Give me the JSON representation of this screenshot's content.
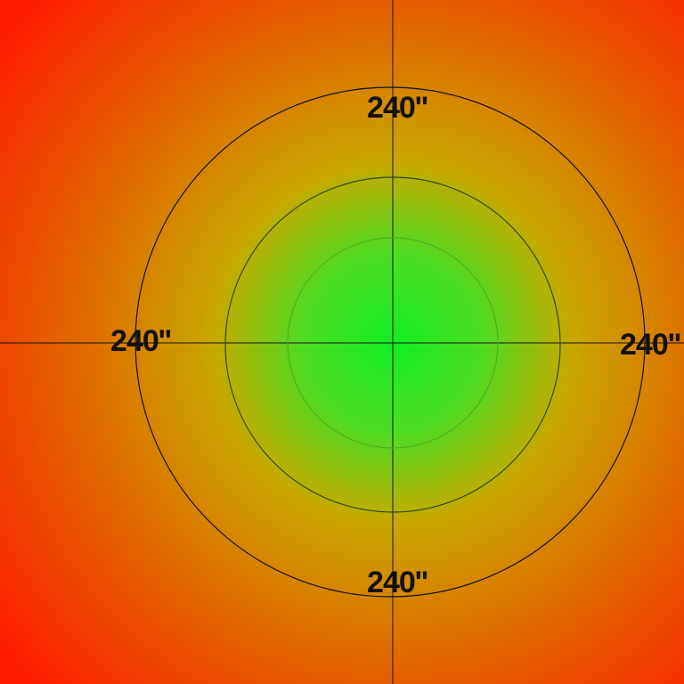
{
  "colors": {
    "center": "#11ee22",
    "mid": "#c8a800",
    "edge": "#ff1a00",
    "ring_outer": "#111111",
    "ring_mid": "#2d4a12",
    "ring_inner": "#3fb024",
    "crosshair": "#111111"
  },
  "labels": {
    "top": "240''",
    "bottom": "240''",
    "left": "240''",
    "right": "240''"
  }
}
